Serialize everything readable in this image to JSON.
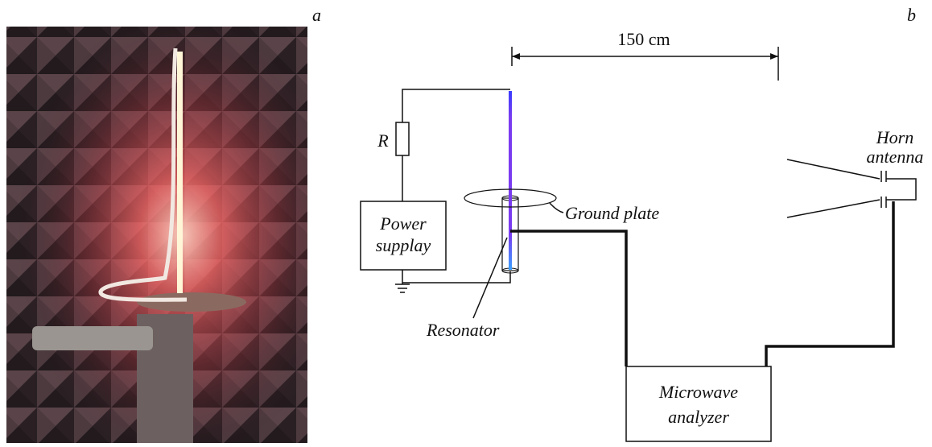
{
  "panels": {
    "a": "a",
    "b": "b"
  },
  "diagram": {
    "distance": "150 cm",
    "resistor": "R",
    "power_supply": [
      "Power",
      "supplay"
    ],
    "ground_plate": "Ground plate",
    "resonator": "Resonator",
    "horn_antenna": [
      "Horn",
      "antenna"
    ],
    "microwave_analyzer": [
      "Microwave",
      "analyzer"
    ]
  }
}
